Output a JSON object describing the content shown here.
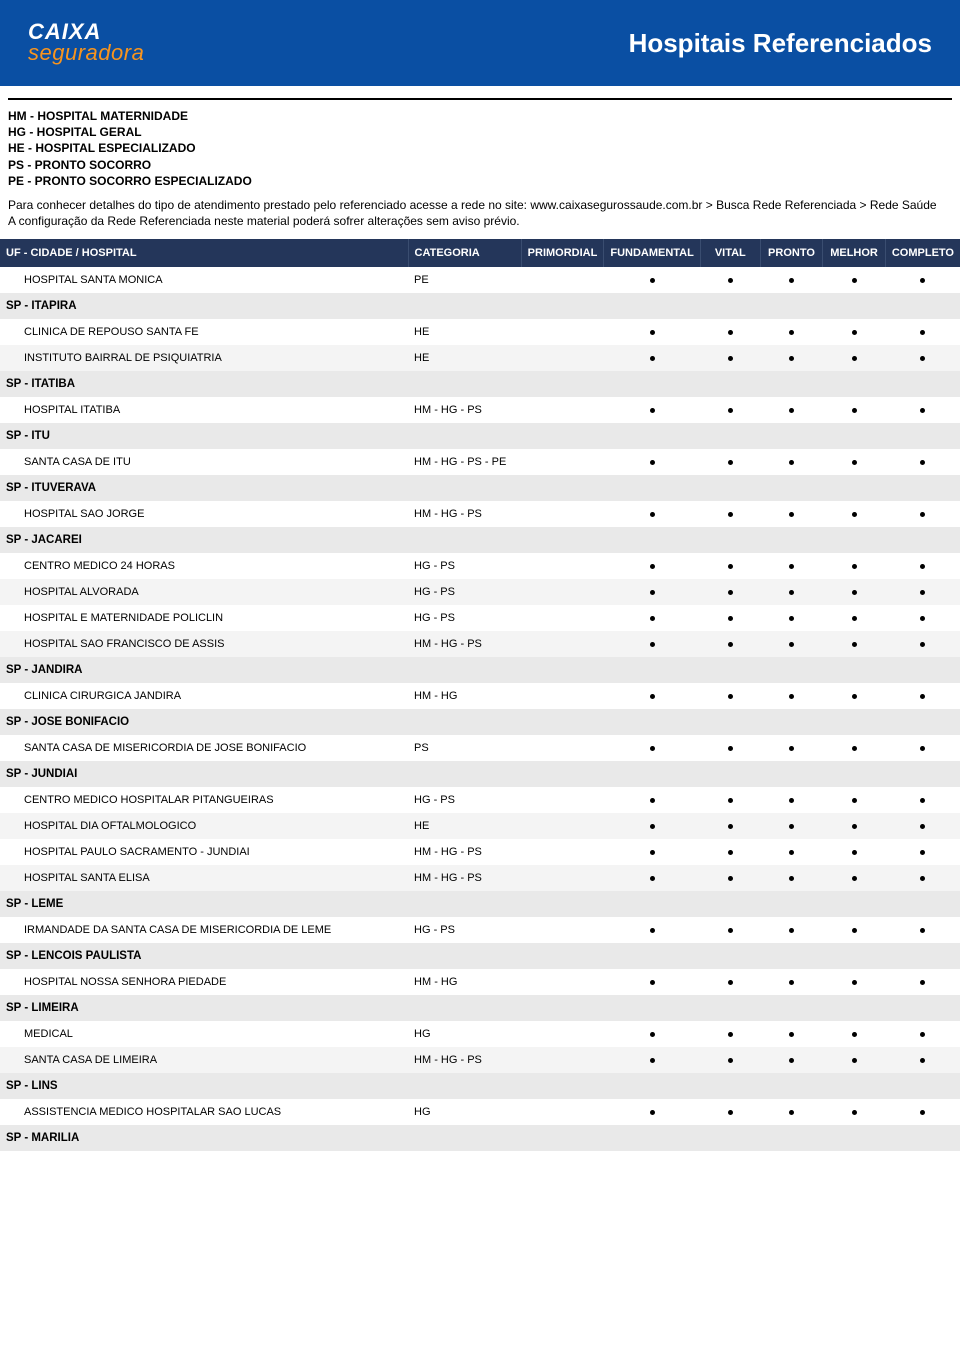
{
  "header": {
    "logo_top": "CAIXA",
    "logo_bottom": "seguradora",
    "title": "Hospitais Referenciados",
    "bg_color": "#0a4fa3",
    "accent_color": "#f7941e"
  },
  "legend": [
    "HM - HOSPITAL MATERNIDADE",
    "HG - HOSPITAL GERAL",
    "HE - HOSPITAL ESPECIALIZADO",
    "PS - PRONTO SOCORRO",
    "PE - PRONTO SOCORRO ESPECIALIZADO"
  ],
  "note_line1": "Para conhecer detalhes do tipo de atendimento prestado pelo referenciado acesse a rede no site: www.caixasegurossaude.com.br > Busca Rede Referenciada > Rede Saúde",
  "note_line2": "A configuração da Rede Referenciada neste material poderá sofrer alterações sem aviso prévio.",
  "table": {
    "header_bg": "#24365a",
    "group_bg": "#e9e9e9",
    "columns": [
      "UF - CIDADE / HOSPITAL",
      "CATEGORIA",
      "PRIMORDIAL",
      "FUNDAMENTAL",
      "VITAL",
      "PRONTO",
      "MELHOR",
      "COMPLETO"
    ],
    "rows": [
      {
        "type": "data",
        "name": "HOSPITAL SANTA MONICA",
        "cat": "PE",
        "plans": [
          false,
          true,
          true,
          true,
          true,
          true
        ]
      },
      {
        "type": "group",
        "label": "SP - ITAPIRA"
      },
      {
        "type": "data",
        "name": "CLINICA DE REPOUSO SANTA FE",
        "cat": "HE",
        "plans": [
          false,
          true,
          true,
          true,
          true,
          true
        ]
      },
      {
        "type": "data",
        "alt": true,
        "name": "INSTITUTO BAIRRAL DE PSIQUIATRIA",
        "cat": "HE",
        "plans": [
          false,
          true,
          true,
          true,
          true,
          true
        ]
      },
      {
        "type": "group",
        "label": "SP - ITATIBA"
      },
      {
        "type": "data",
        "name": "HOSPITAL ITATIBA",
        "cat": "HM - HG - PS",
        "plans": [
          false,
          true,
          true,
          true,
          true,
          true
        ]
      },
      {
        "type": "group",
        "label": "SP - ITU"
      },
      {
        "type": "data",
        "name": "SANTA CASA DE ITU",
        "cat": "HM - HG - PS - PE",
        "plans": [
          false,
          true,
          true,
          true,
          true,
          true
        ]
      },
      {
        "type": "group",
        "label": "SP - ITUVERAVA"
      },
      {
        "type": "data",
        "name": "HOSPITAL SAO JORGE",
        "cat": "HM - HG - PS",
        "plans": [
          false,
          true,
          true,
          true,
          true,
          true
        ]
      },
      {
        "type": "group",
        "label": "SP - JACAREI"
      },
      {
        "type": "data",
        "name": "CENTRO MEDICO 24 HORAS",
        "cat": "HG - PS",
        "plans": [
          false,
          true,
          true,
          true,
          true,
          true
        ]
      },
      {
        "type": "data",
        "alt": true,
        "name": "HOSPITAL ALVORADA",
        "cat": "HG - PS",
        "plans": [
          false,
          true,
          true,
          true,
          true,
          true
        ]
      },
      {
        "type": "data",
        "name": "HOSPITAL E MATERNIDADE POLICLIN",
        "cat": "HG - PS",
        "plans": [
          false,
          true,
          true,
          true,
          true,
          true
        ]
      },
      {
        "type": "data",
        "alt": true,
        "name": "HOSPITAL SAO FRANCISCO DE ASSIS",
        "cat": "HM - HG - PS",
        "plans": [
          false,
          true,
          true,
          true,
          true,
          true
        ]
      },
      {
        "type": "group",
        "label": "SP - JANDIRA"
      },
      {
        "type": "data",
        "name": "CLINICA CIRURGICA JANDIRA",
        "cat": "HM - HG",
        "plans": [
          false,
          true,
          true,
          true,
          true,
          true
        ]
      },
      {
        "type": "group",
        "label": "SP - JOSE BONIFACIO"
      },
      {
        "type": "data",
        "name": "SANTA CASA DE MISERICORDIA DE JOSE BONIFACIO",
        "cat": "PS",
        "plans": [
          false,
          true,
          true,
          true,
          true,
          true
        ]
      },
      {
        "type": "group",
        "label": "SP - JUNDIAI"
      },
      {
        "type": "data",
        "name": "CENTRO MEDICO HOSPITALAR PITANGUEIRAS",
        "cat": "HG - PS",
        "plans": [
          false,
          true,
          true,
          true,
          true,
          true
        ]
      },
      {
        "type": "data",
        "alt": true,
        "name": "HOSPITAL DIA OFTALMOLOGICO",
        "cat": "HE",
        "plans": [
          false,
          true,
          true,
          true,
          true,
          true
        ]
      },
      {
        "type": "data",
        "name": "HOSPITAL PAULO SACRAMENTO - JUNDIAI",
        "cat": "HM - HG - PS",
        "plans": [
          false,
          true,
          true,
          true,
          true,
          true
        ]
      },
      {
        "type": "data",
        "alt": true,
        "name": "HOSPITAL SANTA ELISA",
        "cat": "HM - HG - PS",
        "plans": [
          false,
          true,
          true,
          true,
          true,
          true
        ]
      },
      {
        "type": "group",
        "label": "SP - LEME"
      },
      {
        "type": "data",
        "name": "IRMANDADE DA SANTA CASA DE MISERICORDIA DE LEME",
        "cat": "HG - PS",
        "plans": [
          false,
          true,
          true,
          true,
          true,
          true
        ]
      },
      {
        "type": "group",
        "label": "SP - LENCOIS PAULISTA"
      },
      {
        "type": "data",
        "name": "HOSPITAL NOSSA SENHORA PIEDADE",
        "cat": "HM - HG",
        "plans": [
          false,
          true,
          true,
          true,
          true,
          true
        ]
      },
      {
        "type": "group",
        "label": "SP - LIMEIRA"
      },
      {
        "type": "data",
        "name": "MEDICAL",
        "cat": "HG",
        "plans": [
          false,
          true,
          true,
          true,
          true,
          true
        ]
      },
      {
        "type": "data",
        "alt": true,
        "name": "SANTA CASA DE LIMEIRA",
        "cat": "HM - HG - PS",
        "plans": [
          false,
          true,
          true,
          true,
          true,
          true
        ]
      },
      {
        "type": "group",
        "label": "SP - LINS"
      },
      {
        "type": "data",
        "name": "ASSISTENCIA MEDICO HOSPITALAR SAO LUCAS",
        "cat": "HG",
        "plans": [
          false,
          true,
          true,
          true,
          true,
          true
        ]
      },
      {
        "type": "group",
        "label": "SP - MARILIA"
      }
    ]
  }
}
